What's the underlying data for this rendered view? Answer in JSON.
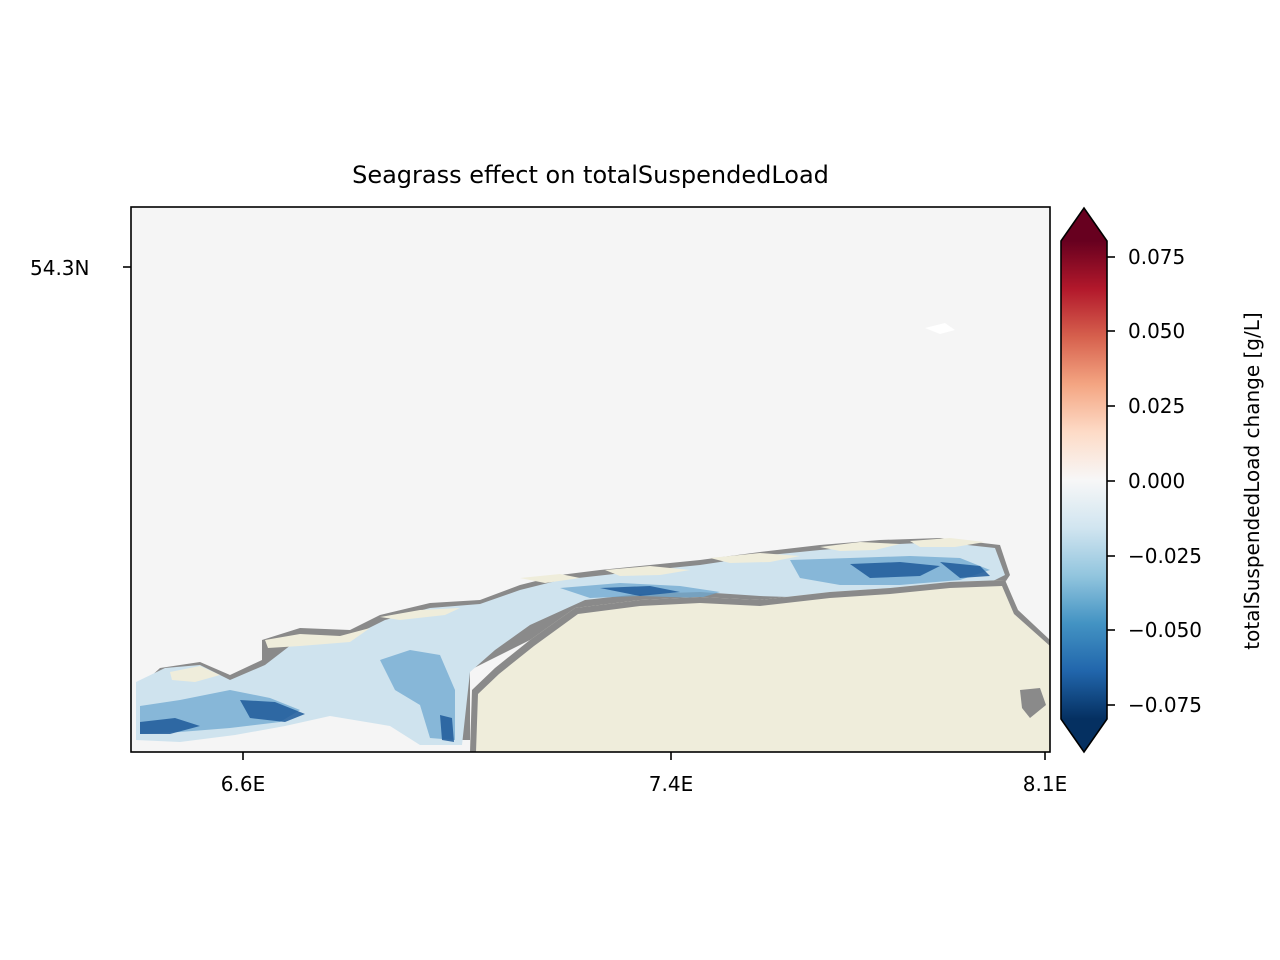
{
  "title": "Seagrass effect on totalSuspendedLoad",
  "map": {
    "y_ticks": [
      {
        "label": "54.3N",
        "value": 54.3
      }
    ],
    "x_ticks": [
      {
        "label": "6.6E",
        "value": 6.6
      },
      {
        "label": "7.4E",
        "value": 7.4
      },
      {
        "label": "8.1E",
        "value": 8.1
      }
    ],
    "colors": {
      "sea_no_change": "#f5f5f5",
      "land": "#efeddb",
      "dry_tidal_flat": "#8a8a8a"
    }
  },
  "colorbar": {
    "label": "totalSuspendedLoad change [g/L]",
    "colormap": "RdBu_r",
    "range": [
      -0.085,
      0.085
    ],
    "extend": "both",
    "ticks": [
      {
        "label": "0.075",
        "value": 0.075
      },
      {
        "label": "0.050",
        "value": 0.05
      },
      {
        "label": "0.025",
        "value": 0.025
      },
      {
        "label": "0.000",
        "value": 0.0
      },
      {
        "label": "−0.025",
        "value": -0.025
      },
      {
        "label": "−0.050",
        "value": -0.05
      },
      {
        "label": "−0.075",
        "value": -0.075
      }
    ]
  }
}
